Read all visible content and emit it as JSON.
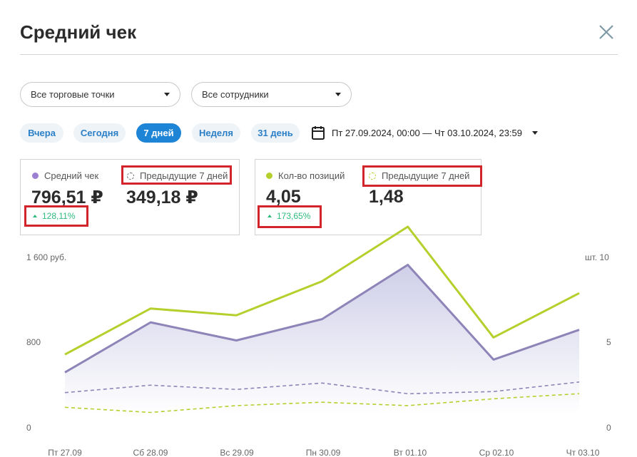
{
  "header": {
    "title": "Средний чек",
    "close_icon": "close-icon"
  },
  "filters": {
    "store_select": "Все торговые точки",
    "employee_select": "Все сотрудники"
  },
  "periods": [
    {
      "label": "Вчера",
      "active": false
    },
    {
      "label": "Сегодня",
      "active": false
    },
    {
      "label": "7 дней",
      "active": true
    },
    {
      "label": "Неделя",
      "active": false
    },
    {
      "label": "31 день",
      "active": false
    }
  ],
  "date_range": {
    "icon": "calendar-icon",
    "text": "Пт 27.09.2024, 00:00 — Чт 03.10.2024, 23:59"
  },
  "cards": [
    {
      "current_label": "Средний чек",
      "current_value": "796,51 ₽",
      "previous_label": "Предыдущие 7 дней",
      "previous_value": "349,18 ₽",
      "delta": "128,11%"
    },
    {
      "current_label": "Кол-во позиций",
      "current_value": "4,05",
      "previous_label": "Предыдущие 7 дней",
      "previous_value": "1,48",
      "delta": "173,65%"
    }
  ],
  "colors": {
    "avg_check": "#8f84b8",
    "positions": "#b5cf2c",
    "area_fill": "#dcdcef",
    "accent": "#1e84d6",
    "positive": "#2dbb7b",
    "highlight": "#d3242b"
  },
  "chart_data": {
    "type": "line",
    "categories": [
      "Пт 27.09",
      "Сб 28.09",
      "Вс 29.09",
      "Пн 30.09",
      "Вт 01.10",
      "Ср 02.10",
      "Чт 03.10"
    ],
    "left_axis": {
      "ticks": [
        "1 600 руб.",
        "800",
        "0"
      ],
      "range": [
        0,
        1600
      ]
    },
    "right_axis": {
      "ticks": [
        "шт. 10",
        "5",
        "0"
      ],
      "range": [
        0,
        10
      ]
    },
    "series": [
      {
        "name": "Средний чек",
        "axis": "left",
        "style": "solid-area",
        "values": [
          520,
          990,
          820,
          1020,
          1530,
          640,
          920
        ]
      },
      {
        "name": "Кол-во позиций",
        "axis": "right",
        "style": "solid",
        "values": [
          4.3,
          7.0,
          6.6,
          8.6,
          11.8,
          5.3,
          7.9
        ]
      },
      {
        "name": "Предыдущие 7 дней",
        "axis": "left",
        "style": "dashed",
        "values": [
          330,
          400,
          360,
          420,
          320,
          340,
          430
        ]
      },
      {
        "name": "Предыдущие 7 дней",
        "axis": "right",
        "style": "dashed",
        "values": [
          1.2,
          0.9,
          1.3,
          1.5,
          1.3,
          1.7,
          2.0
        ]
      }
    ]
  }
}
